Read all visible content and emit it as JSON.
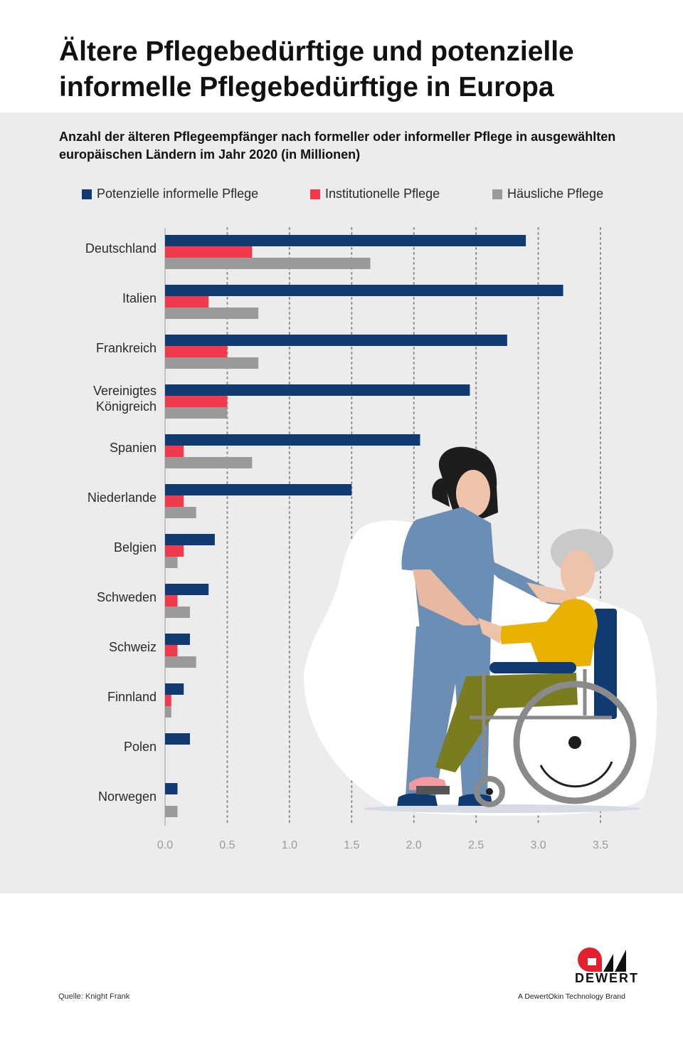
{
  "title": "Ältere Pflegebedürftige und potenzielle informelle Pflegebedürftige in Europa",
  "chart_data": {
    "type": "bar",
    "orientation": "horizontal",
    "title": "Anzahl der älteren Pflegeempfänger nach formeller oder informeller Pflege in ausgewählten europäischen Ländern im Jahr 2020 (in Millionen)",
    "categories": [
      "Deutschland",
      "Italien",
      "Frankreich",
      "Vereinigtes Königreich",
      "Spanien",
      "Niederlande",
      "Belgien",
      "Schweden",
      "Schweiz",
      "Finnland",
      "Polen",
      "Norwegen"
    ],
    "category_lines": [
      [
        "Deutschland"
      ],
      [
        "Italien"
      ],
      [
        "Frankreich"
      ],
      [
        "Vereinigtes",
        "Königreich"
      ],
      [
        "Spanien"
      ],
      [
        "Niederlande"
      ],
      [
        "Belgien"
      ],
      [
        "Schweden"
      ],
      [
        "Schweiz"
      ],
      [
        "Finnland"
      ],
      [
        "Polen"
      ],
      [
        "Norwegen"
      ]
    ],
    "series": [
      {
        "name": "Potenzielle informelle Pflege",
        "color": "#0f3a72",
        "values": [
          2.9,
          3.2,
          2.75,
          2.45,
          2.05,
          1.5,
          0.4,
          0.35,
          0.2,
          0.15,
          0.2,
          0.1
        ]
      },
      {
        "name": "Institutionelle Pflege",
        "color": "#f13a4b",
        "values": [
          0.7,
          0.35,
          0.5,
          0.5,
          0.15,
          0.15,
          0.15,
          0.1,
          0.1,
          0.05,
          0,
          0
        ]
      },
      {
        "name": "Häusliche Pflege",
        "color": "#9a9a9a",
        "values": [
          1.65,
          0.75,
          0.75,
          0.5,
          0.7,
          0.25,
          0.1,
          0.2,
          0.25,
          0.05,
          0,
          0.1
        ]
      }
    ],
    "xlim": [
      0,
      3.5
    ],
    "xticks": [
      0,
      0.5,
      1,
      1.5,
      2,
      2.5,
      3,
      3.5
    ],
    "xtick_labels": [
      "0.0",
      "0.5",
      "1.0",
      "1.5",
      "2.0",
      "2.5",
      "3.0",
      "3.5"
    ],
    "grid": "vertical dotted",
    "legend_position": "top"
  },
  "footer": {
    "source": "Quelle: Knight Frank",
    "brand": "DEWERT",
    "brand_tagline": "A DewertOkin Technology Brand"
  },
  "colors": {
    "panel": "#ececec",
    "navy": "#0f3a72",
    "red": "#f13a4b",
    "gray": "#9a9a9a",
    "logo_red": "#e3202e"
  }
}
